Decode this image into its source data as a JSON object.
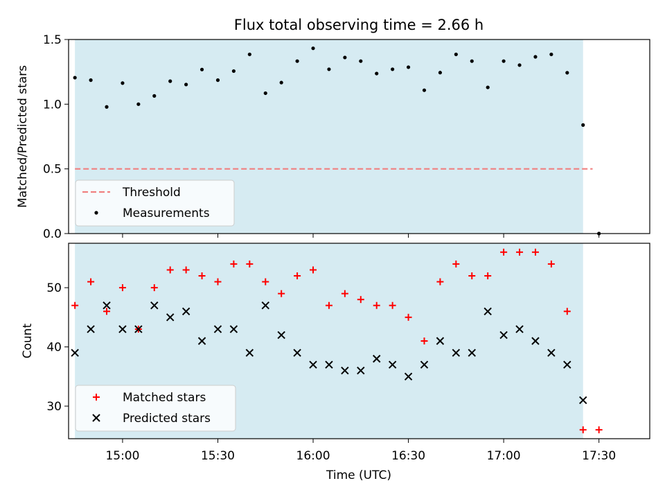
{
  "chart_data": [
    {
      "type": "scatter",
      "title": "Flux total observing time = 2.66 h",
      "ylabel": "Matched/Predicted stars",
      "xlim": [
        "14:43",
        "17:46"
      ],
      "ylim": [
        0,
        1.5
      ],
      "yticks": [
        "0.0",
        "0.5",
        "1.0",
        "1.5"
      ],
      "shaded_region": {
        "start": "14:45",
        "end": "17:25",
        "color": "#add8e6"
      },
      "threshold": {
        "name": "Threshold",
        "value": 0.5,
        "x": [
          "14:45",
          "17:28"
        ],
        "color": "#f08080"
      },
      "legend": {
        "placement": "lower-left",
        "entries": [
          "Threshold",
          "Measurements"
        ]
      },
      "series": [
        {
          "name": "Measurements",
          "color": "#000000",
          "x": [
            "14:45",
            "14:50",
            "14:55",
            "15:00",
            "15:05",
            "15:10",
            "15:15",
            "15:20",
            "15:25",
            "15:30",
            "15:35",
            "15:40",
            "15:45",
            "15:50",
            "15:55",
            "16:00",
            "16:05",
            "16:10",
            "16:15",
            "16:20",
            "16:25",
            "16:30",
            "16:35",
            "16:40",
            "16:45",
            "16:50",
            "16:55",
            "17:00",
            "17:05",
            "17:10",
            "17:15",
            "17:20",
            "17:25",
            "17:30"
          ],
          "values": [
            1.205,
            1.186,
            0.979,
            1.163,
            1.0,
            1.064,
            1.178,
            1.152,
            1.268,
            1.186,
            1.256,
            1.385,
            1.085,
            1.167,
            1.333,
            1.432,
            1.27,
            1.361,
            1.333,
            1.237,
            1.27,
            1.286,
            1.108,
            1.244,
            1.385,
            1.333,
            1.13,
            1.333,
            1.302,
            1.366,
            1.385,
            1.243,
            0.839,
            0.0
          ]
        }
      ]
    },
    {
      "type": "scatter",
      "xlabel": "Time (UTC)",
      "ylabel": "Count",
      "xlim": [
        "14:43",
        "17:46"
      ],
      "ylim": [
        24.5,
        57.5
      ],
      "yticks": [
        "30",
        "40",
        "50"
      ],
      "xticks": [
        "15:00",
        "15:30",
        "16:00",
        "16:30",
        "17:00",
        "17:30"
      ],
      "shaded_region": {
        "start": "14:45",
        "end": "17:25",
        "color": "#add8e6"
      },
      "legend": {
        "placement": "lower-left",
        "entries": [
          "Matched stars",
          "Predicted stars"
        ]
      },
      "series": [
        {
          "name": "Matched stars",
          "color": "#ff0000",
          "marker": "plus",
          "x": [
            "14:45",
            "14:50",
            "14:55",
            "15:00",
            "15:05",
            "15:10",
            "15:15",
            "15:20",
            "15:25",
            "15:30",
            "15:35",
            "15:40",
            "15:45",
            "15:50",
            "15:55",
            "16:00",
            "16:05",
            "16:10",
            "16:15",
            "16:20",
            "16:25",
            "16:30",
            "16:35",
            "16:40",
            "16:45",
            "16:50",
            "16:55",
            "17:00",
            "17:05",
            "17:10",
            "17:15",
            "17:20",
            "17:25",
            "17:30"
          ],
          "values": [
            47,
            51,
            46,
            50,
            43,
            50,
            53,
            53,
            52,
            51,
            54,
            54,
            51,
            49,
            52,
            53,
            47,
            49,
            48,
            47,
            47,
            45,
            41,
            51,
            54,
            52,
            52,
            56,
            56,
            56,
            54,
            46,
            26,
            26
          ]
        },
        {
          "name": "Predicted stars",
          "color": "#000000",
          "marker": "x",
          "x": [
            "14:45",
            "14:50",
            "14:55",
            "15:00",
            "15:05",
            "15:10",
            "15:15",
            "15:20",
            "15:25",
            "15:30",
            "15:35",
            "15:40",
            "15:45",
            "15:50",
            "15:55",
            "16:00",
            "16:05",
            "16:10",
            "16:15",
            "16:20",
            "16:25",
            "16:30",
            "16:35",
            "16:40",
            "16:45",
            "16:50",
            "16:55",
            "17:00",
            "17:05",
            "17:10",
            "17:15",
            "17:20",
            "17:25"
          ],
          "values": [
            39,
            43,
            47,
            43,
            43,
            47,
            45,
            46,
            41,
            43,
            43,
            39,
            47,
            42,
            39,
            37,
            37,
            36,
            36,
            38,
            37,
            35,
            37,
            41,
            39,
            39,
            46,
            42,
            43,
            41,
            39,
            37,
            31
          ]
        }
      ]
    }
  ]
}
